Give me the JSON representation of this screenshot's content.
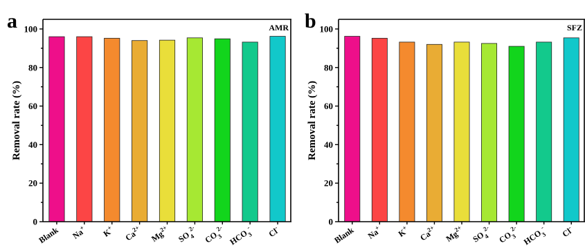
{
  "chart_data": [
    {
      "type": "bar",
      "panel_letter": "a",
      "dataset_label": "AMR",
      "ylabel": "Removal rate (%)",
      "ylim": [
        0,
        105
      ],
      "yticks": [
        "0",
        "20",
        "40",
        "60",
        "80",
        "100"
      ],
      "categories": [
        {
          "base": "Blank",
          "sub": "",
          "sup": ""
        },
        {
          "base": "Na",
          "sub": "",
          "sup": "+"
        },
        {
          "base": "K",
          "sub": "",
          "sup": "+"
        },
        {
          "base": "Ca",
          "sub": "",
          "sup": "2+"
        },
        {
          "base": "Mg",
          "sub": "",
          "sup": "2+"
        },
        {
          "base": "SO",
          "sub": "4",
          "sup": "2-"
        },
        {
          "base": "CO",
          "sub": "3",
          "sup": "2-"
        },
        {
          "base": "HCO",
          "sub": "3",
          "sup": "-"
        },
        {
          "base": "Cl",
          "sub": "",
          "sup": "-"
        }
      ],
      "values": [
        96.0,
        96.0,
        95.2,
        94.0,
        94.2,
        95.4,
        94.9,
        93.2,
        96.2
      ],
      "colors": [
        "#EE0F8A",
        "#FC4545",
        "#F48A2E",
        "#E9AC34",
        "#E9DE3A",
        "#A6E833",
        "#12D51C",
        "#13C98C",
        "#12C8CA"
      ]
    },
    {
      "type": "bar",
      "panel_letter": "b",
      "dataset_label": "SFZ",
      "ylabel": "Removal rate (%)",
      "ylim": [
        0,
        105
      ],
      "yticks": [
        "0",
        "20",
        "40",
        "60",
        "80",
        "100"
      ],
      "categories": [
        {
          "base": "Blank",
          "sub": "",
          "sup": ""
        },
        {
          "base": "Na",
          "sub": "",
          "sup": "+"
        },
        {
          "base": "K",
          "sub": "",
          "sup": "+"
        },
        {
          "base": "Ca",
          "sub": "",
          "sup": "2+"
        },
        {
          "base": "Mg",
          "sub": "",
          "sup": "2+"
        },
        {
          "base": "SO",
          "sub": "4",
          "sup": "2-"
        },
        {
          "base": "CO",
          "sub": "3",
          "sup": "2-"
        },
        {
          "base": "HCO",
          "sub": "3",
          "sup": "-"
        },
        {
          "base": "Cl",
          "sub": "",
          "sup": "-"
        }
      ],
      "values": [
        96.2,
        95.2,
        93.2,
        92.0,
        93.2,
        92.5,
        91.0,
        93.2,
        95.4
      ],
      "colors": [
        "#EE0F8A",
        "#FC4545",
        "#F48A2E",
        "#E9AC34",
        "#E9DE3A",
        "#A6E833",
        "#12D51C",
        "#13C98C",
        "#12C8CA"
      ]
    }
  ]
}
